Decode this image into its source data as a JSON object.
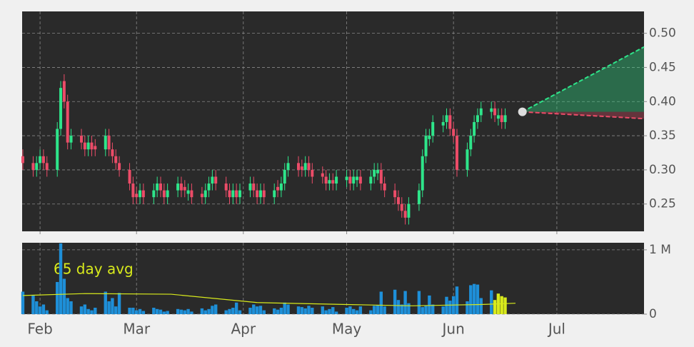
{
  "chart_data": {
    "type": "candlestick",
    "x": [
      27,
      30,
      31,
      32,
      33,
      34,
      37,
      38,
      39,
      40,
      41,
      44,
      45,
      46,
      47,
      48,
      51,
      52,
      53,
      54,
      55,
      58,
      59,
      60,
      61,
      62,
      65,
      66,
      67,
      68,
      69,
      72,
      73,
      74,
      75,
      76,
      79,
      80,
      81,
      82,
      83,
      86,
      87,
      88,
      89,
      90,
      93,
      94,
      95,
      96,
      97,
      100,
      101,
      102,
      103,
      104,
      107,
      108,
      109,
      110,
      111,
      114,
      115,
      116,
      117,
      118,
      121,
      122,
      123,
      124,
      125,
      128,
      129,
      130,
      131,
      132,
      135,
      136,
      137,
      138,
      139,
      142,
      143,
      144,
      145,
      146,
      149,
      150,
      151,
      152,
      153,
      156,
      157,
      158,
      159,
      160,
      163,
      164,
      165,
      166,
      167
    ],
    "open": [
      0.32,
      0.31,
      0.3,
      0.31,
      0.32,
      0.31,
      0.3,
      0.36,
      0.43,
      0.4,
      0.34,
      0.35,
      0.34,
      0.33,
      0.34,
      0.335,
      0.33,
      0.35,
      0.33,
      0.32,
      0.31,
      0.3,
      0.28,
      0.265,
      0.26,
      0.27,
      0.26,
      0.27,
      0.28,
      0.27,
      0.26,
      0.27,
      0.28,
      0.275,
      0.265,
      0.27,
      0.265,
      0.26,
      0.27,
      0.28,
      0.29,
      0.28,
      0.27,
      0.26,
      0.27,
      0.26,
      0.27,
      0.28,
      0.27,
      0.26,
      0.27,
      0.26,
      0.275,
      0.27,
      0.28,
      0.3,
      0.31,
      0.305,
      0.3,
      0.31,
      0.3,
      0.295,
      0.29,
      0.28,
      0.285,
      0.28,
      0.285,
      0.29,
      0.28,
      0.285,
      0.29,
      0.28,
      0.29,
      0.295,
      0.3,
      0.28,
      0.27,
      0.26,
      0.25,
      0.24,
      0.23,
      0.25,
      0.27,
      0.32,
      0.345,
      0.35,
      0.365,
      0.37,
      0.38,
      0.36,
      0.35,
      0.3,
      0.33,
      0.35,
      0.37,
      0.38,
      0.385,
      0.39,
      0.375,
      0.38,
      0.37
    ],
    "high": [
      0.33,
      0.32,
      0.32,
      0.33,
      0.33,
      0.32,
      0.37,
      0.43,
      0.44,
      0.41,
      0.36,
      0.36,
      0.35,
      0.35,
      0.35,
      0.345,
      0.36,
      0.36,
      0.34,
      0.33,
      0.32,
      0.31,
      0.29,
      0.275,
      0.28,
      0.28,
      0.28,
      0.29,
      0.29,
      0.28,
      0.28,
      0.29,
      0.29,
      0.285,
      0.28,
      0.28,
      0.275,
      0.28,
      0.29,
      0.3,
      0.3,
      0.29,
      0.28,
      0.28,
      0.28,
      0.28,
      0.29,
      0.29,
      0.28,
      0.28,
      0.28,
      0.28,
      0.285,
      0.29,
      0.31,
      0.32,
      0.32,
      0.315,
      0.32,
      0.32,
      0.31,
      0.305,
      0.3,
      0.295,
      0.295,
      0.3,
      0.3,
      0.3,
      0.3,
      0.3,
      0.3,
      0.3,
      0.31,
      0.31,
      0.31,
      0.29,
      0.28,
      0.27,
      0.26,
      0.25,
      0.26,
      0.28,
      0.33,
      0.36,
      0.36,
      0.38,
      0.38,
      0.39,
      0.39,
      0.37,
      0.36,
      0.34,
      0.36,
      0.38,
      0.39,
      0.4,
      0.4,
      0.4,
      0.39,
      0.39,
      0.39
    ],
    "low": [
      0.3,
      0.29,
      0.29,
      0.3,
      0.3,
      0.29,
      0.29,
      0.35,
      0.39,
      0.33,
      0.33,
      0.33,
      0.32,
      0.32,
      0.32,
      0.32,
      0.32,
      0.32,
      0.31,
      0.3,
      0.29,
      0.27,
      0.25,
      0.25,
      0.25,
      0.25,
      0.25,
      0.26,
      0.26,
      0.25,
      0.25,
      0.26,
      0.26,
      0.26,
      0.255,
      0.25,
      0.25,
      0.25,
      0.26,
      0.27,
      0.27,
      0.26,
      0.25,
      0.25,
      0.25,
      0.25,
      0.26,
      0.26,
      0.25,
      0.25,
      0.25,
      0.25,
      0.26,
      0.26,
      0.27,
      0.29,
      0.29,
      0.29,
      0.29,
      0.29,
      0.28,
      0.28,
      0.27,
      0.27,
      0.27,
      0.27,
      0.275,
      0.27,
      0.27,
      0.275,
      0.27,
      0.27,
      0.28,
      0.285,
      0.27,
      0.26,
      0.25,
      0.24,
      0.23,
      0.22,
      0.22,
      0.24,
      0.26,
      0.31,
      0.335,
      0.34,
      0.355,
      0.36,
      0.35,
      0.34,
      0.29,
      0.29,
      0.32,
      0.34,
      0.36,
      0.37,
      0.375,
      0.37,
      0.365,
      0.36,
      0.36
    ],
    "close": [
      0.31,
      0.3,
      0.31,
      0.32,
      0.31,
      0.3,
      0.36,
      0.42,
      0.4,
      0.34,
      0.35,
      0.34,
      0.33,
      0.34,
      0.33,
      0.33,
      0.35,
      0.33,
      0.32,
      0.31,
      0.3,
      0.28,
      0.26,
      0.26,
      0.27,
      0.26,
      0.27,
      0.28,
      0.27,
      0.26,
      0.27,
      0.28,
      0.27,
      0.27,
      0.27,
      0.26,
      0.26,
      0.27,
      0.28,
      0.29,
      0.28,
      0.27,
      0.26,
      0.27,
      0.26,
      0.27,
      0.28,
      0.27,
      0.26,
      0.27,
      0.26,
      0.27,
      0.27,
      0.28,
      0.3,
      0.31,
      0.3,
      0.3,
      0.31,
      0.3,
      0.29,
      0.29,
      0.28,
      0.285,
      0.28,
      0.29,
      0.29,
      0.28,
      0.29,
      0.29,
      0.28,
      0.29,
      0.3,
      0.3,
      0.28,
      0.27,
      0.26,
      0.25,
      0.24,
      0.23,
      0.25,
      0.27,
      0.32,
      0.35,
      0.35,
      0.37,
      0.37,
      0.38,
      0.36,
      0.35,
      0.3,
      0.33,
      0.35,
      0.37,
      0.38,
      0.39,
      0.39,
      0.38,
      0.38,
      0.37,
      0.38
    ],
    "up_color": "#2ee58a",
    "down_color": "#ec4c68",
    "xlim": [
      26.8,
      207.3
    ],
    "xticks": [
      {
        "value": 32,
        "label": "Feb"
      },
      {
        "value": 60,
        "label": "Mar"
      },
      {
        "value": 91,
        "label": "Apr"
      },
      {
        "value": 121,
        "label": "May"
      },
      {
        "value": 152,
        "label": "Jun"
      },
      {
        "value": 182,
        "label": "Jul"
      }
    ],
    "ylim": [
      0.21,
      0.532
    ],
    "yticks": [
      0.25,
      {
        "value": 0.3,
        "label": "0.30"
      },
      0.35,
      {
        "value": 0.4,
        "label": "0.40"
      },
      0.45,
      {
        "value": 0.5,
        "label": "0.50"
      }
    ],
    "grid": true,
    "projection": {
      "x": [
        172,
        207.3
      ],
      "upper": [
        0.385,
        0.48
      ],
      "lower": [
        0.385,
        0.375
      ],
      "upper_color": "#2ee58a",
      "lower_color": "#ec4c68"
    },
    "volume": {
      "type": "bar",
      "values": [
        350000,
        300000,
        200000,
        120000,
        150000,
        60000,
        500000,
        1100000,
        550000,
        250000,
        200000,
        120000,
        150000,
        80000,
        60000,
        100000,
        350000,
        200000,
        250000,
        120000,
        330000,
        100000,
        100000,
        60000,
        80000,
        50000,
        100000,
        80000,
        70000,
        40000,
        50000,
        80000,
        70000,
        60000,
        80000,
        40000,
        90000,
        60000,
        80000,
        130000,
        150000,
        60000,
        80000,
        100000,
        180000,
        60000,
        100000,
        150000,
        120000,
        130000,
        60000,
        90000,
        70000,
        100000,
        180000,
        150000,
        120000,
        110000,
        90000,
        130000,
        100000,
        120000,
        60000,
        80000,
        110000,
        40000,
        100000,
        120000,
        80000,
        60000,
        120000,
        60000,
        130000,
        140000,
        350000,
        120000,
        380000,
        220000,
        150000,
        360000,
        170000,
        360000,
        110000,
        130000,
        290000,
        150000,
        120000,
        270000,
        210000,
        280000,
        430000,
        200000,
        450000,
        470000,
        460000,
        250000,
        370000,
        220000,
        320000,
        280000,
        260000
      ],
      "colors": [
        "#1e8fd8",
        "#1e8fd8",
        "#1e8fd8",
        "#1e8fd8",
        "#1e8fd8",
        "#1e8fd8",
        "#1e8fd8",
        "#1e8fd8",
        "#1e8fd8",
        "#1e8fd8",
        "#1e8fd8",
        "#1e8fd8",
        "#1e8fd8",
        "#1e8fd8",
        "#1e8fd8",
        "#1e8fd8",
        "#1e8fd8",
        "#1e8fd8",
        "#1e8fd8",
        "#1e8fd8",
        "#1e8fd8",
        "#1e8fd8",
        "#1e8fd8",
        "#1e8fd8",
        "#1e8fd8",
        "#1e8fd8",
        "#1e8fd8",
        "#1e8fd8",
        "#1e8fd8",
        "#1e8fd8",
        "#1e8fd8",
        "#1e8fd8",
        "#1e8fd8",
        "#1e8fd8",
        "#1e8fd8",
        "#1e8fd8",
        "#1e8fd8",
        "#1e8fd8",
        "#1e8fd8",
        "#1e8fd8",
        "#1e8fd8",
        "#1e8fd8",
        "#1e8fd8",
        "#1e8fd8",
        "#1e8fd8",
        "#1e8fd8",
        "#1e8fd8",
        "#1e8fd8",
        "#1e8fd8",
        "#1e8fd8",
        "#1e8fd8",
        "#1e8fd8",
        "#1e8fd8",
        "#1e8fd8",
        "#1e8fd8",
        "#1e8fd8",
        "#1e8fd8",
        "#1e8fd8",
        "#1e8fd8",
        "#1e8fd8",
        "#1e8fd8",
        "#1e8fd8",
        "#1e8fd8",
        "#1e8fd8",
        "#1e8fd8",
        "#1e8fd8",
        "#1e8fd8",
        "#1e8fd8",
        "#1e8fd8",
        "#1e8fd8",
        "#1e8fd8",
        "#1e8fd8",
        "#1e8fd8",
        "#1e8fd8",
        "#1e8fd8",
        "#1e8fd8",
        "#1e8fd8",
        "#1e8fd8",
        "#1e8fd8",
        "#1e8fd8",
        "#1e8fd8",
        "#1e8fd8",
        "#1e8fd8",
        "#1e8fd8",
        "#1e8fd8",
        "#1e8fd8",
        "#1e8fd8",
        "#1e8fd8",
        "#1e8fd8",
        "#1e8fd8",
        "#1e8fd8",
        "#1e8fd8",
        "#1e8fd8",
        "#1e8fd8",
        "#1e8fd8",
        "#1e8fd8",
        "#1e8fd8",
        "#d8ea1c",
        "#d8ea1c",
        "#d8ea1c",
        "#d8ea1c"
      ],
      "ylim": [
        0,
        1110000
      ],
      "yticks": [
        0,
        {
          "value": 1000000,
          "label": "1 M"
        }
      ],
      "average": {
        "name": "65 day avg",
        "color": "#d8ea1c",
        "x": [
          27,
          45,
          70,
          95,
          121,
          140,
          160,
          170
        ],
        "values": [
          290000,
          320000,
          310000,
          180000,
          150000,
          130000,
          150000,
          170000
        ]
      }
    }
  }
}
